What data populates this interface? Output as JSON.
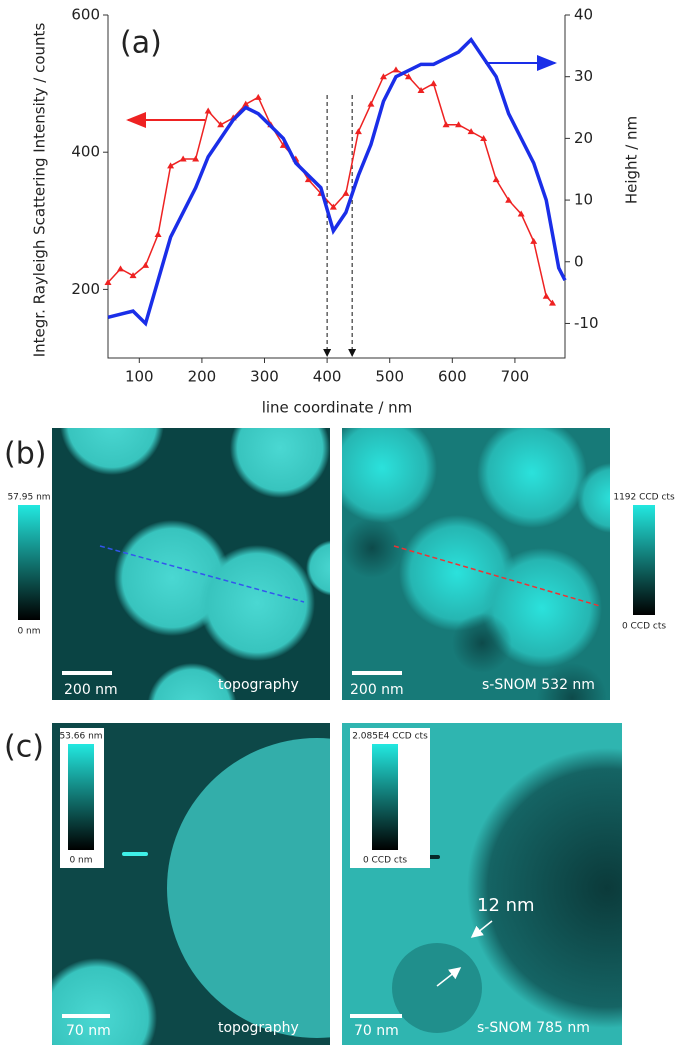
{
  "chart_data": {
    "type": "line",
    "panel_label": "(a)",
    "x_label": "line coordinate / nm",
    "y_label": "Integr. Rayleigh Scattering Intensity / counts",
    "y2_label": "Height / nm",
    "xlim": [
      50,
      780
    ],
    "xticks": [
      100,
      200,
      300,
      400,
      500,
      600,
      700
    ],
    "ylim": [
      100,
      600
    ],
    "yticks": [
      200,
      400,
      600
    ],
    "y2lim": [
      -15.6,
      40
    ],
    "y2ticks": [
      -10,
      0,
      10,
      20,
      30,
      40
    ],
    "markers": [
      400,
      440
    ],
    "series": [
      {
        "name": "Integr. Rayleigh Scattering Intensity",
        "color": "#ee2222",
        "axis": "y",
        "x": [
          50,
          70,
          90,
          110,
          130,
          150,
          170,
          190,
          210,
          230,
          250,
          270,
          290,
          310,
          330,
          350,
          370,
          390,
          410,
          430,
          450,
          470,
          490,
          510,
          530,
          550,
          570,
          590,
          610,
          630,
          650,
          670,
          690,
          710,
          730,
          750,
          760
        ],
        "values": [
          210,
          230,
          220,
          235,
          280,
          380,
          390,
          390,
          460,
          440,
          450,
          470,
          480,
          440,
          410,
          390,
          360,
          340,
          320,
          340,
          430,
          470,
          510,
          520,
          510,
          490,
          500,
          440,
          440,
          430,
          420,
          360,
          330,
          310,
          270,
          190,
          180
        ]
      },
      {
        "name": "Height",
        "color": "#1a2ee8",
        "axis": "y2",
        "x": [
          50,
          70,
          90,
          110,
          130,
          150,
          170,
          190,
          210,
          230,
          250,
          270,
          290,
          310,
          330,
          350,
          370,
          390,
          410,
          430,
          450,
          470,
          490,
          510,
          530,
          550,
          570,
          590,
          610,
          630,
          650,
          670,
          690,
          710,
          730,
          750,
          770,
          780
        ],
        "values": [
          -9,
          -8.5,
          -8,
          -10,
          -3,
          4,
          8,
          12,
          17,
          20,
          23,
          25,
          24,
          22,
          20,
          16,
          14,
          12,
          5,
          8,
          14,
          19,
          26,
          30,
          31,
          32,
          32,
          33,
          34,
          36,
          33,
          30,
          24,
          20,
          16,
          10,
          -1,
          -3
        ]
      }
    ]
  },
  "panels": [
    {
      "label": "(b)",
      "images": [
        {
          "colorbar_max": "57.95 nm",
          "colorbar_min": "0 nm",
          "scale_bar": "200 nm",
          "caption": "topography"
        },
        {
          "colorbar_max": "1192 CCD cts",
          "colorbar_min": "0 CCD cts",
          "scale_bar": "200 nm",
          "caption": "s-SNOM 532 nm"
        }
      ]
    },
    {
      "label": "(c)",
      "images": [
        {
          "colorbar_max": "53.66 nm",
          "colorbar_min": "0 nm",
          "scale_bar": "70 nm",
          "caption": "topography"
        },
        {
          "colorbar_max": "2.085E4 CCD cts",
          "colorbar_min": "0 CCD cts",
          "scale_bar": "70 nm",
          "caption": "s-SNOM 785 nm",
          "annotation": "12 nm"
        }
      ]
    }
  ]
}
